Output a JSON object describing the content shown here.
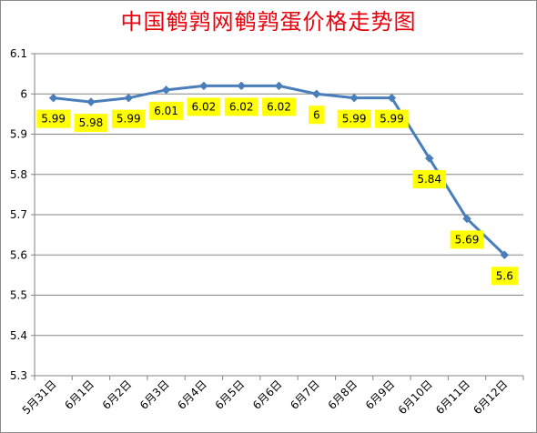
{
  "chart_data": {
    "type": "line",
    "title": "中国鹌鹑网鹌鹑蛋价格走势图",
    "xlabel": "",
    "ylabel": "",
    "categories": [
      "5月31日",
      "6月1日",
      "6月2日",
      "6月3日",
      "6月4日",
      "6月5日",
      "6月6日",
      "6月7日",
      "6月8日",
      "6月9日",
      "6月10日",
      "6月11日",
      "6月12日"
    ],
    "series": [
      {
        "values": [
          5.99,
          5.98,
          5.99,
          6.01,
          6.02,
          6.02,
          6.02,
          6,
          5.99,
          5.99,
          5.84,
          5.69,
          5.6
        ],
        "labels": [
          "5.99",
          "5.98",
          "5.99",
          "6.01",
          "6.02",
          "6.02",
          "6.02",
          "6",
          "5.99",
          "5.99",
          "5.84",
          "5.69",
          "5.6"
        ],
        "color": "#4a7ebb"
      }
    ],
    "ylim": [
      5.3,
      6.1
    ],
    "yticks": [
      "5.3",
      "5.4",
      "5.5",
      "5.6",
      "5.7",
      "5.8",
      "5.9",
      "6",
      "6.1"
    ],
    "grid": true,
    "legend": "none",
    "data_label_background": "#ffff00",
    "title_color": "#e8000b"
  }
}
